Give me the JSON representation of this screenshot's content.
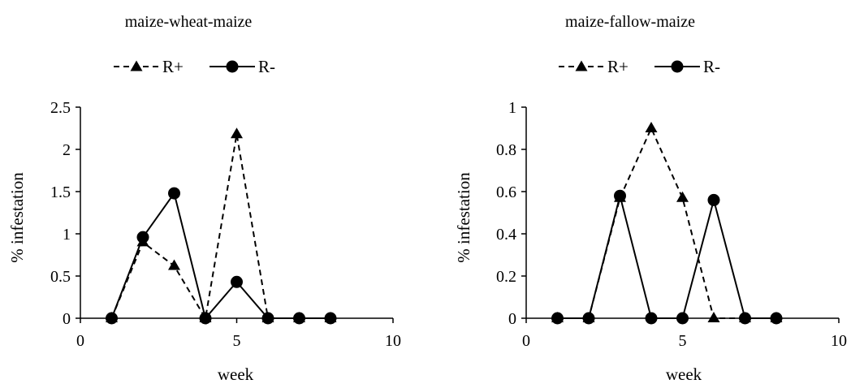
{
  "chart_data": [
    {
      "type": "line",
      "title": "maize-wheat-maize",
      "xlabel": "week",
      "ylabel": "% infestation",
      "xlim": [
        0,
        10
      ],
      "ylim": [
        0,
        2.5
      ],
      "xticks": [
        "0",
        "5",
        "10"
      ],
      "yticks": [
        "0",
        "0.5",
        "1",
        "1.5",
        "2",
        "2.5"
      ],
      "legend_position": "top",
      "grid": false,
      "series": [
        {
          "name": "R+",
          "style": "dashed",
          "marker": "triangle",
          "x": [
            1,
            2,
            3,
            4,
            5,
            6,
            7,
            8
          ],
          "y": [
            0,
            0.9,
            0.62,
            0,
            2.18,
            0,
            0,
            0
          ]
        },
        {
          "name": "R-",
          "style": "solid",
          "marker": "circle",
          "x": [
            1,
            2,
            3,
            4,
            5,
            6,
            7,
            8
          ],
          "y": [
            0,
            0.96,
            1.48,
            0,
            0.43,
            0,
            0,
            0
          ]
        }
      ]
    },
    {
      "type": "line",
      "title": "maize-fallow-maize",
      "xlabel": "week",
      "ylabel": "% infestation",
      "xlim": [
        0,
        10
      ],
      "ylim": [
        0,
        1
      ],
      "xticks": [
        "0",
        "5",
        "10"
      ],
      "yticks": [
        "0",
        "0.2",
        "0.4",
        "0.6",
        "0.8",
        "1"
      ],
      "legend_position": "top",
      "grid": false,
      "series": [
        {
          "name": "R+",
          "style": "dashed",
          "marker": "triangle",
          "x": [
            1,
            2,
            3,
            4,
            5,
            6,
            7,
            8
          ],
          "y": [
            0,
            0,
            0.57,
            0.9,
            0.57,
            0,
            0,
            0
          ]
        },
        {
          "name": "R-",
          "style": "solid",
          "marker": "circle",
          "x": [
            1,
            2,
            3,
            4,
            5,
            6,
            7,
            8
          ],
          "y": [
            0,
            0,
            0.58,
            0,
            0,
            0.56,
            0,
            0
          ]
        }
      ]
    }
  ]
}
